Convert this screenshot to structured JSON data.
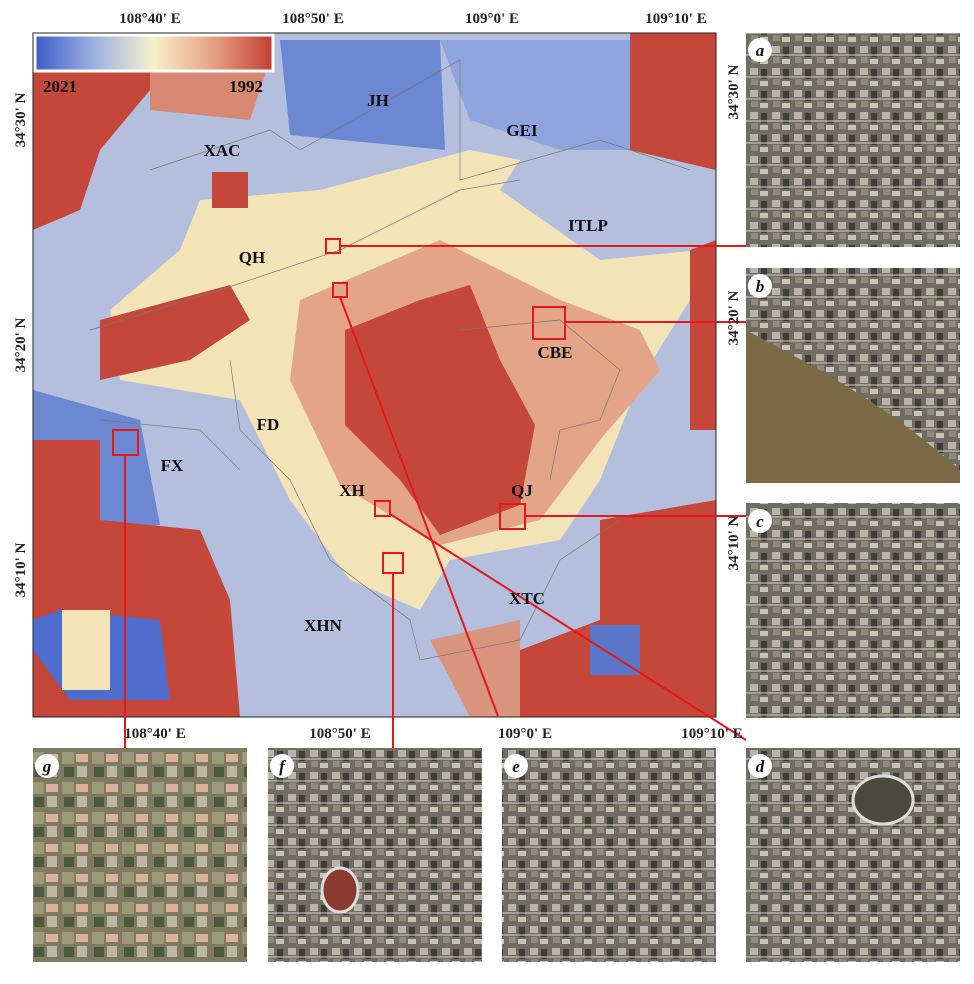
{
  "axis_labels": {
    "top": [
      "108°40' E",
      "108°50' E",
      "109°0' E",
      "109°10' E"
    ],
    "bottom": [
      "108°40' E",
      "108°50' E",
      "109°0' E",
      "109°10' E"
    ],
    "left": [
      "34°30' N",
      "34°20' N",
      "34°10' N"
    ],
    "right": [
      "34°30' N",
      "34°20' N",
      "34°10' N"
    ]
  },
  "legend": {
    "start": "2021",
    "end": "1992"
  },
  "districts": [
    "JH",
    "GEI",
    "XAC",
    "ITLP",
    "QH",
    "CBE",
    "FD",
    "FX",
    "XH",
    "QJ",
    "XTC",
    "XHN"
  ],
  "panels": [
    "a",
    "b",
    "c",
    "d",
    "e",
    "f",
    "g"
  ]
}
